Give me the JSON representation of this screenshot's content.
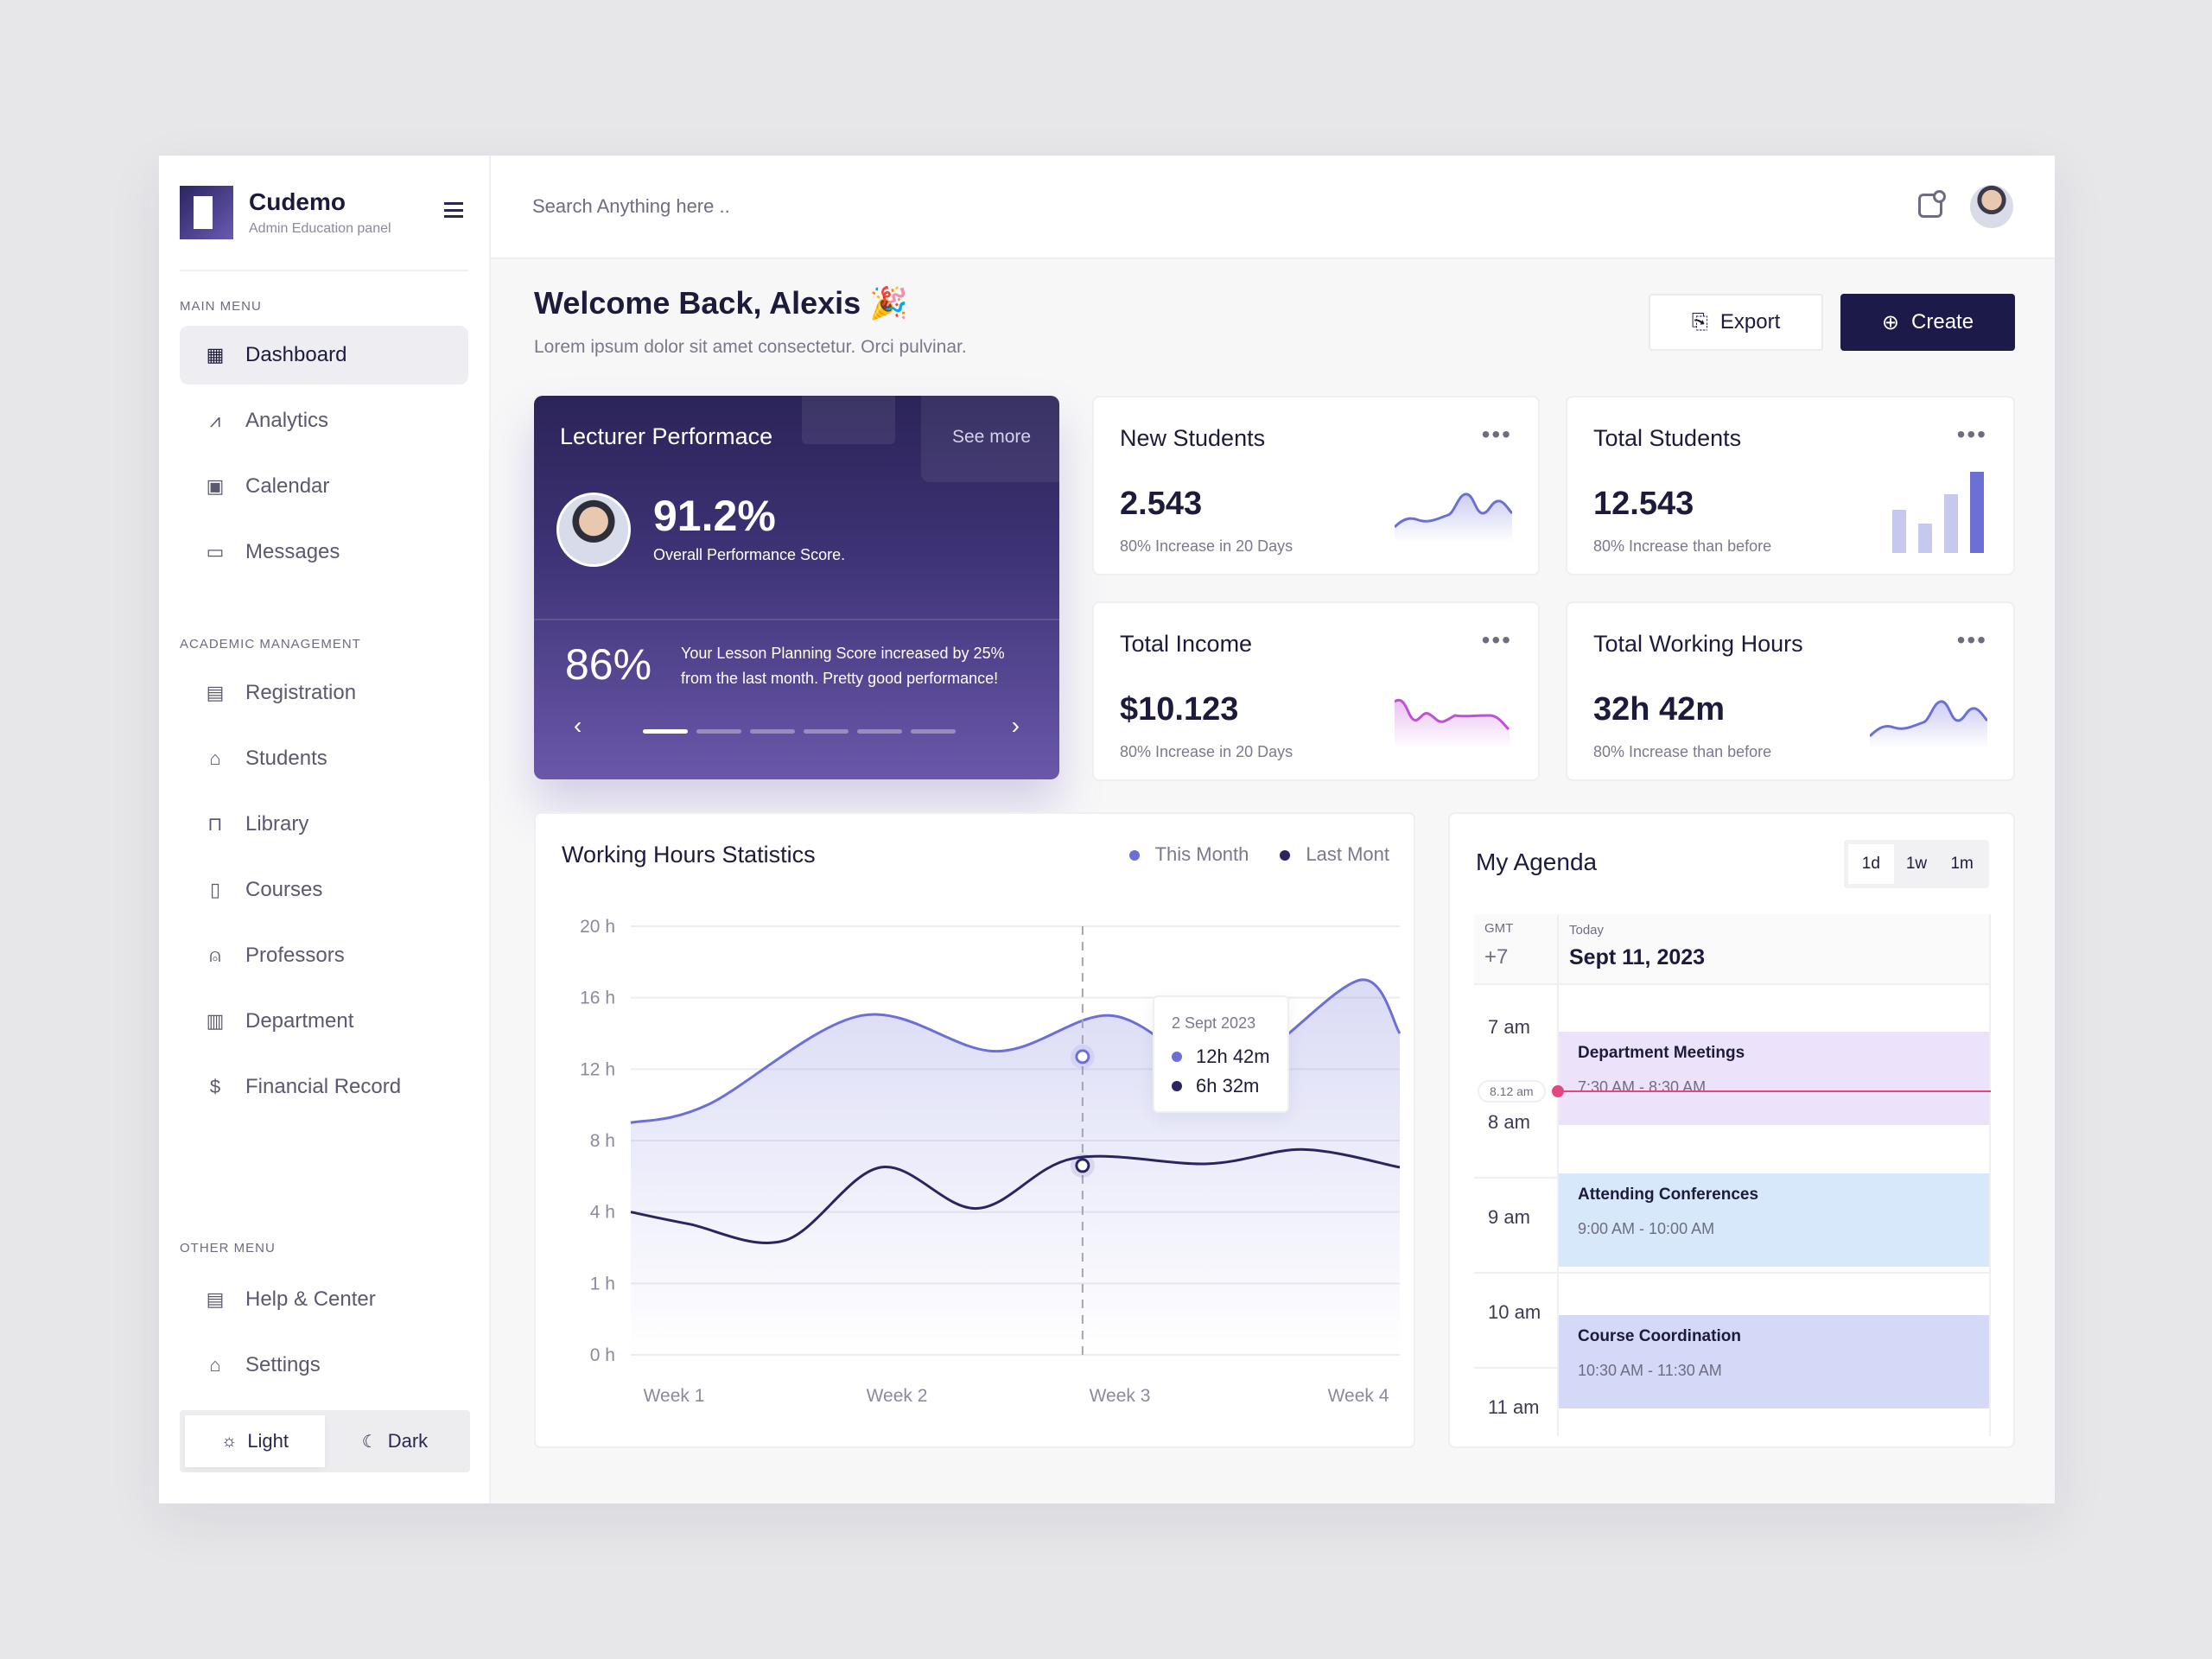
{
  "brand": {
    "title": "Cudemo",
    "subtitle": "Admin Education panel"
  },
  "sidebar": {
    "main_label": "MAIN MENU",
    "main_items": [
      {
        "label": "Dashboard",
        "icon": "grid-icon",
        "active": true
      },
      {
        "label": "Analytics",
        "icon": "chart-icon"
      },
      {
        "label": "Calendar",
        "icon": "calendar-icon"
      },
      {
        "label": "Messages",
        "icon": "message-icon"
      }
    ],
    "academic_label": "ACADEMIC MANAGEMENT",
    "academic_items": [
      {
        "label": "Registration",
        "icon": "document-icon"
      },
      {
        "label": "Students",
        "icon": "graduation-cap-icon"
      },
      {
        "label": "Library",
        "icon": "book-icon"
      },
      {
        "label": "Courses",
        "icon": "course-icon"
      },
      {
        "label": "Professors",
        "icon": "user-icon"
      },
      {
        "label": "Department",
        "icon": "building-icon"
      },
      {
        "label": "Financial Record",
        "icon": "finance-icon"
      }
    ],
    "other_label": "OTHER MENU",
    "other_items": [
      {
        "label": "Help & Center",
        "icon": "document-icon"
      },
      {
        "label": "Settings",
        "icon": "graduation-cap-icon"
      }
    ],
    "theme": {
      "light": "Light",
      "dark": "Dark",
      "selected": "Light"
    }
  },
  "topbar": {
    "search_placeholder": "Search Anything here .."
  },
  "welcome": {
    "title": "Welcome Back, Alexis 🎉",
    "subtitle": "Lorem ipsum dolor sit amet consectetur. Orci pulvinar."
  },
  "actions": {
    "export": "Export",
    "create": "Create"
  },
  "lecturer": {
    "title": "Lecturer Performace",
    "see_more": "See more",
    "score": "91.2%",
    "score_label": "Overall Performance Score.",
    "planning": "86%",
    "planning_desc": "Your Lesson Planning Score increased by 25% from the last month. Pretty good performance!",
    "slides": 6,
    "active_slide": 0
  },
  "stats": [
    {
      "title": "New Students",
      "value": "2.543",
      "sub": "80% Increase in 20 Days",
      "spark": "line",
      "color": "#6b6fd6"
    },
    {
      "title": "Total Students",
      "value": "12.543",
      "sub": "80% Increase than before",
      "spark": "bars",
      "color": "#6b6fd6"
    },
    {
      "title": "Total Income",
      "value": "$10.123",
      "sub": "80% Increase in 20 Days",
      "spark": "line",
      "color": "#c050d8"
    },
    {
      "title": "Total Working Hours",
      "value": "32h 42m",
      "sub": "80% Increase than before",
      "spark": "line",
      "color": "#6b6fd6"
    }
  ],
  "working_hours": {
    "title": "Working Hours Statistics",
    "legend": [
      {
        "name": "This Month",
        "color": "#6b6fd6"
      },
      {
        "name": "Last Mont",
        "color": "#2a2560"
      }
    ],
    "tooltip": {
      "date": "2 Sept 2023",
      "this_month": "12h 42m",
      "last_month": "6h 32m"
    }
  },
  "chart_data": {
    "type": "line",
    "x_labels": [
      "Week 1",
      "Week 2",
      "Week 3",
      "Week 4"
    ],
    "y_ticks": [
      "0 h",
      "1 h",
      "4 h",
      "8 h",
      "12 h",
      "16 h",
      "20 h"
    ],
    "series": [
      {
        "name": "This Month",
        "x": [
          0,
          0.4,
          1.2,
          1.9,
          2.5,
          3.0,
          3.3,
          3.8,
          4.0
        ],
        "y": [
          9,
          10,
          15,
          13,
          15,
          12,
          13,
          17,
          14
        ]
      },
      {
        "name": "Last Mont",
        "x": [
          0,
          0.3,
          0.8,
          1.3,
          1.8,
          2.3,
          3.0,
          3.5,
          4.0
        ],
        "y": [
          4,
          3.5,
          2.8,
          6.5,
          4.2,
          7,
          6.7,
          7.5,
          6.5
        ]
      }
    ],
    "highlight_x": 2.35
  },
  "agenda": {
    "title": "My Agenda",
    "ranges": [
      "1d",
      "1w",
      "1m"
    ],
    "selected_range": "1d",
    "gmt_label": "GMT",
    "gmt_value": "+7",
    "today_label": "Today",
    "date": "Sept 11, 2023",
    "hours": [
      "7 am",
      "8 am",
      "9 am",
      "10 am",
      "11 am"
    ],
    "now_label": "8.12 am",
    "events": [
      {
        "title": "Department Meetings",
        "time": "7:30 AM - 8:30  AM",
        "color": "#ece3fb"
      },
      {
        "title": "Attending Conferences",
        "time": "9:00 AM - 10:00  AM",
        "color": "#d8e8fb"
      },
      {
        "title": "Course Coordination",
        "time": "10:30 AM - 11:30  AM",
        "color": "#d3d9f6"
      }
    ]
  }
}
